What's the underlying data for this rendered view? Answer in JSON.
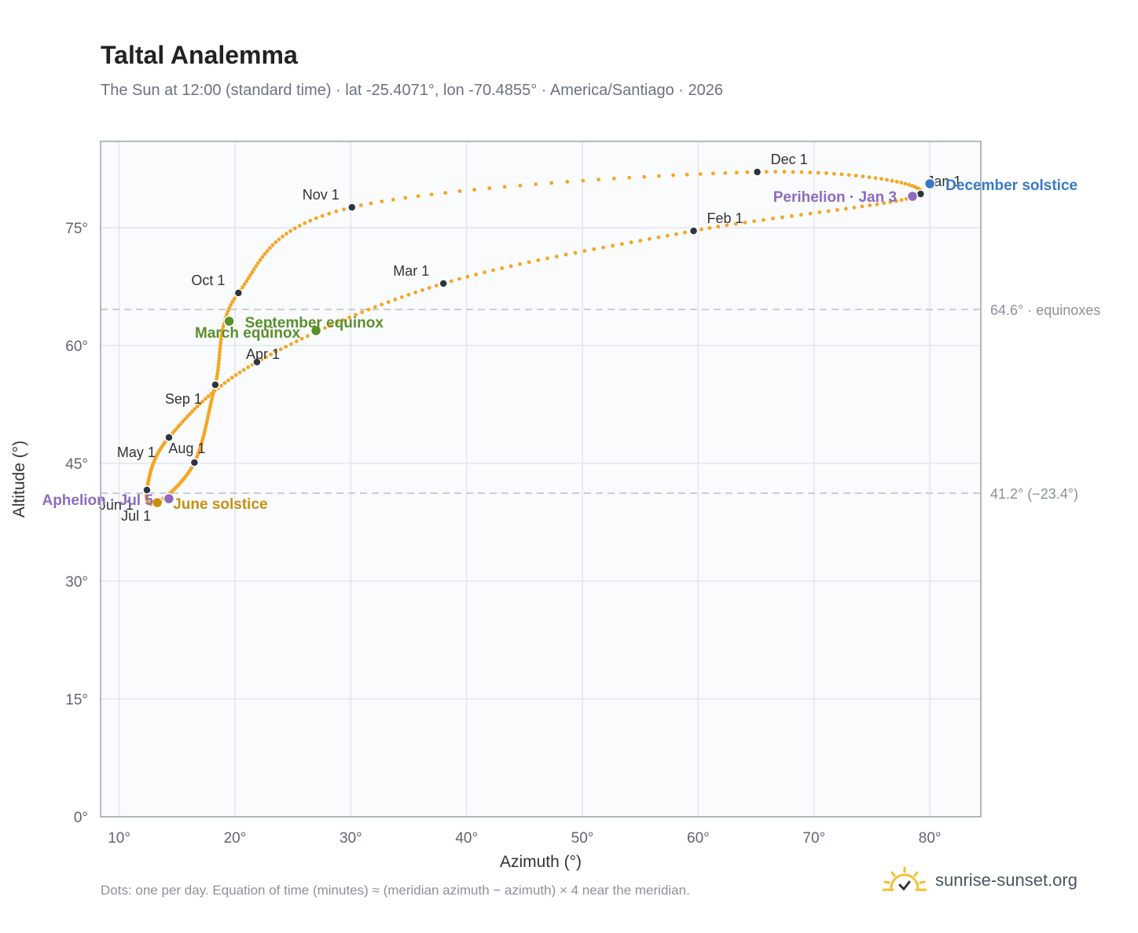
{
  "title": "Taltal Analemma",
  "subtitle": "The Sun at 12:00 (standard time) · lat -25.4071°, lon -70.4855° · America/Santiago · 2026",
  "footnote": "Dots: one per day. Equation of time (minutes) ≈ (meridian azimuth − azimuth) × 4 near the meridian.",
  "brand": {
    "name": "sunrise-sunset.org",
    "icon": "sun-logo-icon"
  },
  "colors": {
    "curve": "#f5a623",
    "month_marker": "#2d3540",
    "equinox": "#5a8f2a",
    "december_solstice": "#3a78c3",
    "june_solstice": "#c8900f",
    "apsis": "#8e6bbf",
    "reference_line": "#c4c9d0",
    "plot_background": "#f9fbfd",
    "grid": "#e3e7ec",
    "frame": "#9aa3ae"
  },
  "chart_data": {
    "type": "scatter",
    "title": "Taltal Analemma",
    "xlabel": "Azimuth (°)",
    "ylabel": "Altitude (°)",
    "xlim": [
      8.4,
      84.4
    ],
    "ylim": [
      0,
      86
    ],
    "xticks": [
      10,
      20,
      30,
      40,
      50,
      60,
      70,
      80
    ],
    "yticks": [
      0,
      15,
      30,
      45,
      60,
      75
    ],
    "tick_suffix": "°",
    "grid": true,
    "markers_note": "one dot per day",
    "month_markers": [
      {
        "label": "Jan 1",
        "az": 79.2,
        "alt": 79.3
      },
      {
        "label": "Feb 1",
        "az": 59.6,
        "alt": 74.6
      },
      {
        "label": "Mar 1",
        "az": 38.0,
        "alt": 67.9
      },
      {
        "label": "Apr 1",
        "az": 21.9,
        "alt": 57.9
      },
      {
        "label": "May 1",
        "az": 14.3,
        "alt": 48.3
      },
      {
        "label": "Jun 1",
        "az": 12.4,
        "alt": 41.6
      },
      {
        "label": "Jul 1",
        "az": 13.3,
        "alt": 40.0
      },
      {
        "label": "Aug 1",
        "az": 16.5,
        "alt": 45.1
      },
      {
        "label": "Sep 1",
        "az": 18.3,
        "alt": 55.0
      },
      {
        "label": "Oct 1",
        "az": 20.3,
        "alt": 66.7
      },
      {
        "label": "Nov 1",
        "az": 30.1,
        "alt": 77.6
      },
      {
        "label": "Dec 1",
        "az": 65.1,
        "alt": 82.1
      }
    ],
    "events": [
      {
        "label": "December solstice",
        "az": 80.0,
        "alt": 80.6,
        "color_key": "december_solstice"
      },
      {
        "label": "Perihelion · Jan 3",
        "az": 78.5,
        "alt": 79.0,
        "color_key": "apsis"
      },
      {
        "label": "March equinox",
        "az": 27.0,
        "alt": 61.9,
        "color_key": "equinox"
      },
      {
        "label": "September equinox",
        "az": 19.5,
        "alt": 63.1,
        "color_key": "equinox"
      },
      {
        "label": "June solstice",
        "az": 13.3,
        "alt": 40.0,
        "color_key": "june_solstice"
      },
      {
        "label": "Aphelion · Jul 5",
        "az": 14.3,
        "alt": 40.5,
        "color_key": "apsis"
      }
    ],
    "reference_lines": [
      {
        "alt": 64.6,
        "label": "64.6° · equinoxes"
      },
      {
        "alt": 41.2,
        "label": "41.2° (−23.4°)"
      }
    ]
  }
}
